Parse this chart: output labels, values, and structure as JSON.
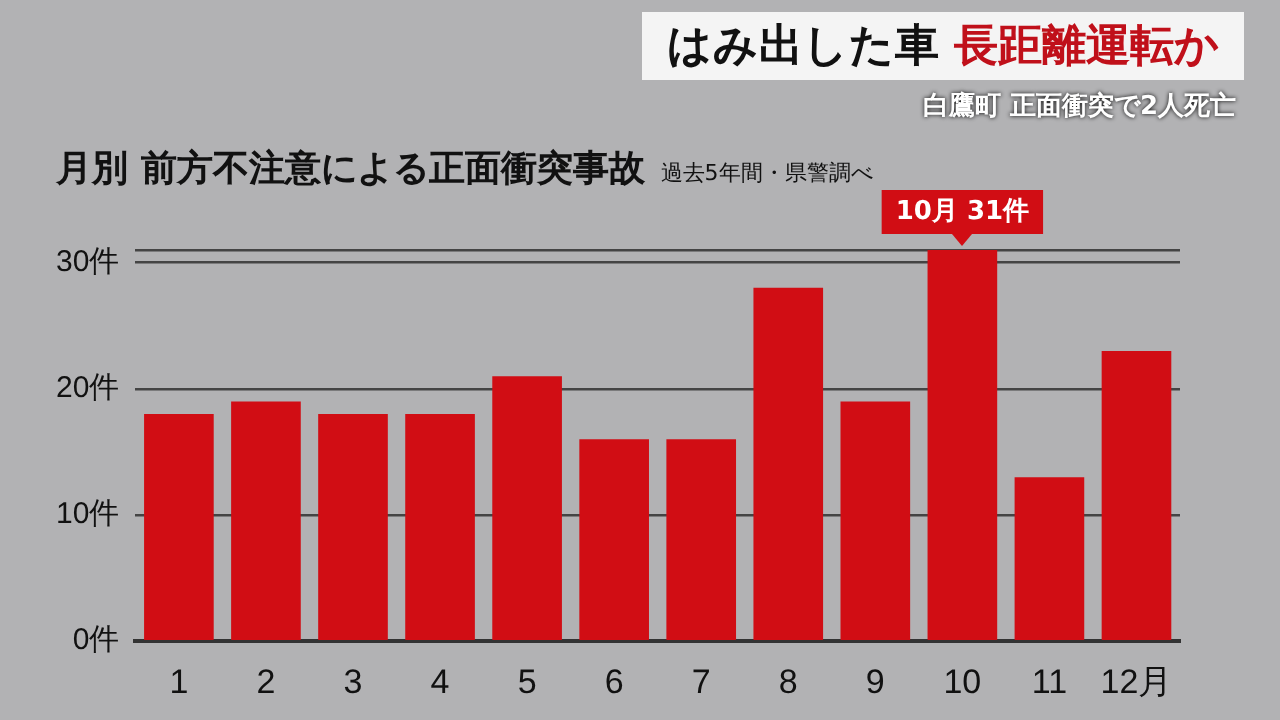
{
  "chart_data": {
    "type": "bar",
    "title": "月別 前方不注意による正面衝突事故",
    "subtitle": "過去5年間・県警調べ",
    "categories": [
      "1",
      "2",
      "3",
      "4",
      "5",
      "6",
      "7",
      "8",
      "9",
      "10",
      "11",
      "12月"
    ],
    "values": [
      18,
      19,
      18,
      18,
      21,
      16,
      16,
      28,
      19,
      31,
      13,
      23
    ],
    "color": "#d10d14",
    "ylim": [
      0,
      31
    ],
    "yticks": [
      {
        "value": 0,
        "label": "0件"
      },
      {
        "value": 10,
        "label": "10件"
      },
      {
        "value": 20,
        "label": "20件"
      },
      {
        "value": 30,
        "label": "30件"
      },
      {
        "value": 31,
        "label": null
      }
    ],
    "grid": "y",
    "legend": false,
    "annotations": [
      "はみ出した車 長距離運転か",
      "白鷹町 正面衝突で2人死亡",
      {
        "text": "10月 31件",
        "x": "10",
        "y": 31
      }
    ]
  }
}
